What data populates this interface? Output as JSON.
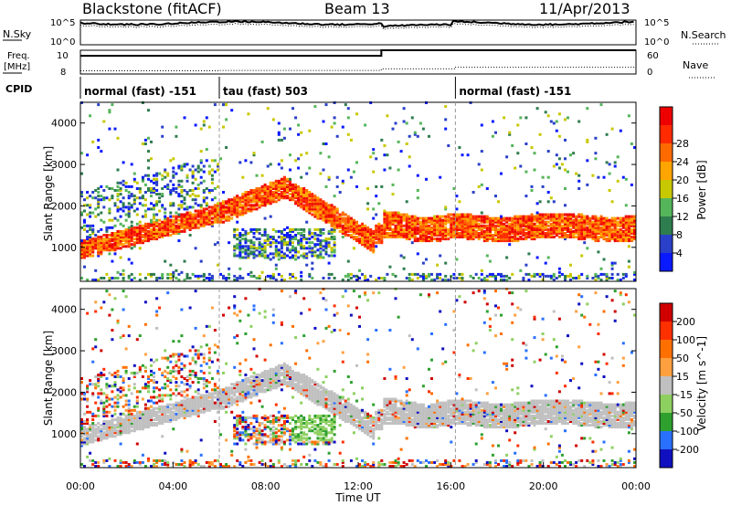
{
  "header": {
    "title": "Blackstone (fitACF)",
    "beam": "Beam 13",
    "date": "11/Apr/2013"
  },
  "nsky_panel": {
    "left_label": "N.Sky",
    "right_label": "N.Search",
    "left_ticks": [
      "10^5",
      "10^0"
    ],
    "right_ticks": [
      "10^5",
      "10^0"
    ]
  },
  "freq_panel": {
    "left_label_1": "Freq.",
    "left_label_2": "[MHz]",
    "right_label": "Nave",
    "left_ticks": [
      "10",
      "8"
    ],
    "right_ticks": [
      "60",
      "0"
    ]
  },
  "cpid": {
    "label": "CPID",
    "modes": [
      {
        "name": "normal (fast) -151",
        "start": 0
      },
      {
        "name": "tau (fast) 503",
        "start": 6
      },
      {
        "name": "normal (fast) -151",
        "start": 16.2
      }
    ]
  },
  "axes": {
    "x_label": "Time UT",
    "x_ticks": [
      "00:00",
      "04:00",
      "08:00",
      "12:00",
      "16:00",
      "20:00",
      "00:00"
    ],
    "y_label": "Slant Range [km]",
    "y_ticks": [
      "1000",
      "2000",
      "3000",
      "4000"
    ]
  },
  "chart_data": [
    {
      "type": "heatmap",
      "title": "Power",
      "xlabel": "Time UT",
      "ylabel": "Slant Range [km]",
      "xlim": [
        0,
        24
      ],
      "ylim": [
        180,
        4500
      ],
      "colorbar": {
        "label": "Power [dB]",
        "ticks": [
          "4",
          "8",
          "12",
          "16",
          "20",
          "24",
          "28"
        ],
        "colors": [
          "#0a1aff",
          "#2a40c8",
          "#2e7d4e",
          "#55b55a",
          "#c8c800",
          "#ffa500",
          "#ff6a00",
          "#ff2a00",
          "#ee0000"
        ]
      }
    },
    {
      "type": "heatmap",
      "title": "Velocity",
      "xlabel": "Time UT",
      "ylabel": "Slant Range [km]",
      "xlim": [
        0,
        24
      ],
      "ylim": [
        180,
        4500
      ],
      "colorbar": {
        "label": "Velocity [m s^-1]",
        "ticks": [
          "200",
          "100",
          "50",
          "15",
          "-15",
          "-50",
          "-100",
          "-200"
        ],
        "colors": [
          "#1010c0",
          "#2a70ff",
          "#2ea02e",
          "#8ed060",
          "#c0c0c0",
          "#ffa040",
          "#ff7000",
          "#ff3000",
          "#d00000"
        ]
      }
    }
  ]
}
